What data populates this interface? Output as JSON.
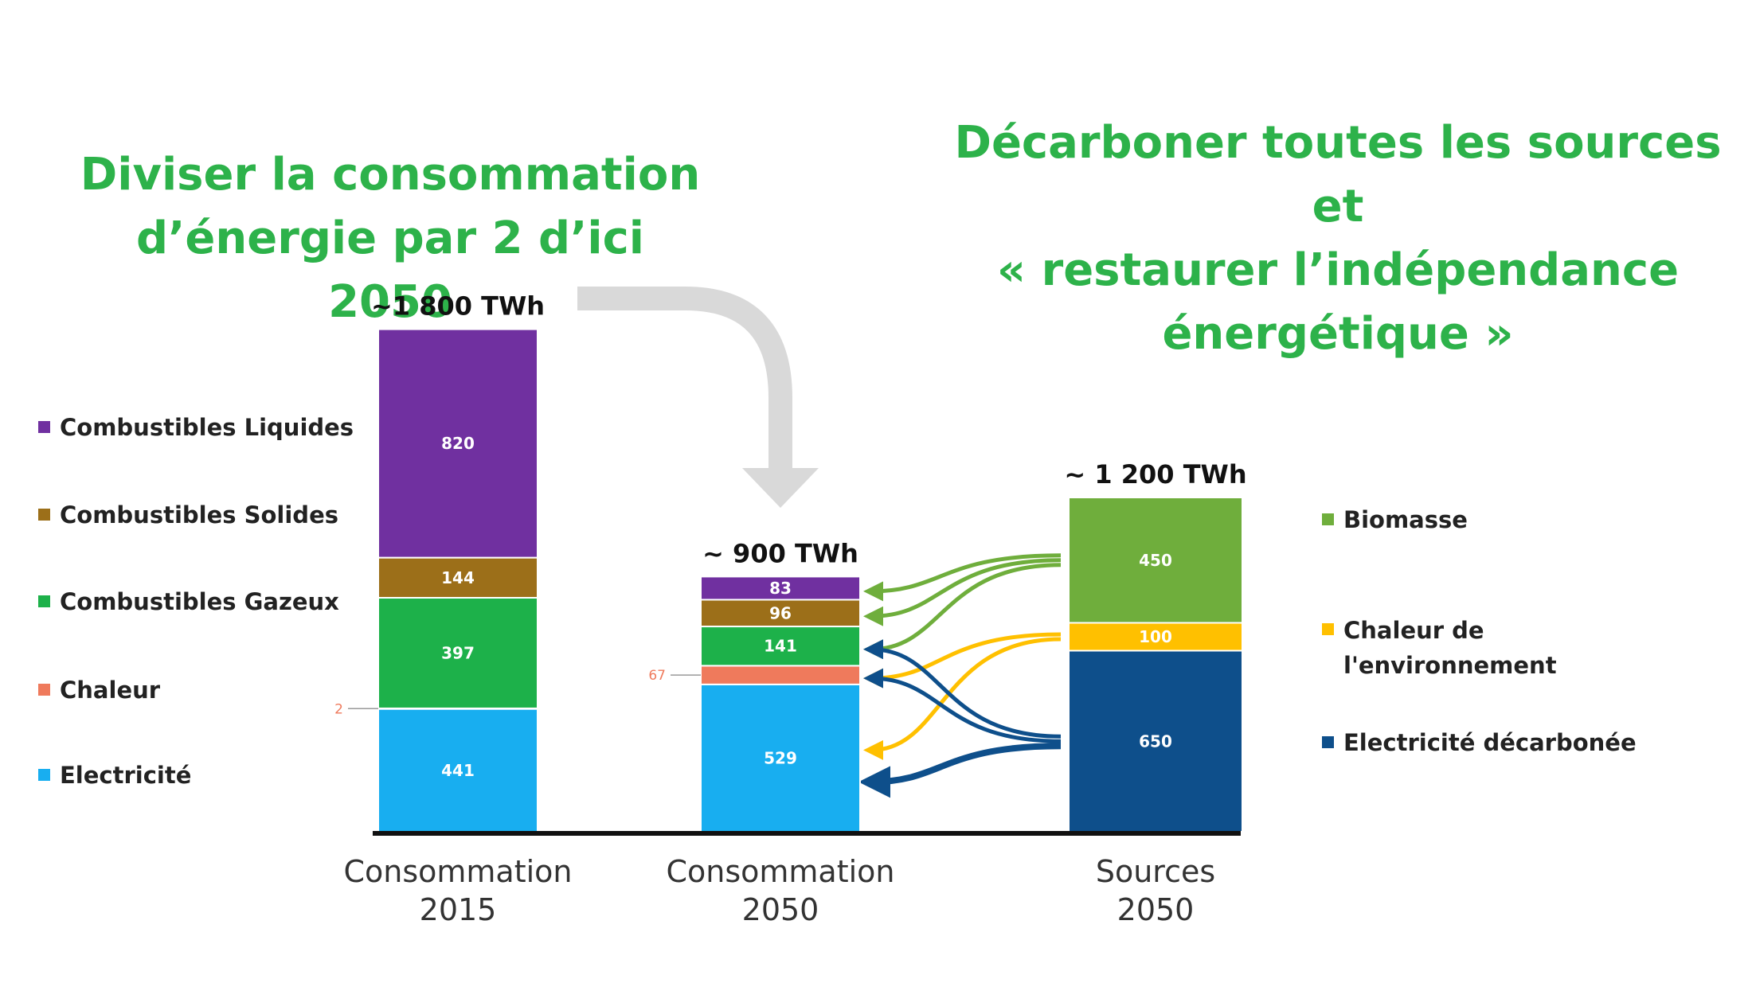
{
  "headline_left": [
    "Diviser la consommation",
    "d’énergie par 2 d’ici 2050"
  ],
  "headline_right": [
    "Décarboner toutes les sources et",
    "« restaurer l’indépendance",
    "énergétique »"
  ],
  "legend_left": [
    {
      "label": "Combustibles Liquides",
      "color": "#7030a0"
    },
    {
      "label": "Combustibles Solides",
      "color": "#9c6f19"
    },
    {
      "label": "Combustibles Gazeux",
      "color": "#1db14a"
    },
    {
      "label": "Chaleur",
      "color": "#ef7a5c"
    },
    {
      "label": "Electricité",
      "color": "#18aef0"
    }
  ],
  "legend_right": [
    {
      "label": [
        "Biomasse"
      ],
      "color": "#6fae3c"
    },
    {
      "label": [
        "Chaleur de",
        "l'environnement"
      ],
      "color": "#ffc000"
    },
    {
      "label": [
        "Electricité décarbonée"
      ],
      "color": "#0e4f8b"
    }
  ],
  "chart_data": {
    "type": "bar",
    "stacked": true,
    "unit": "TWh",
    "categories": [
      "Consommation 2015",
      "Consommation 2050",
      "Sources 2050"
    ],
    "category_labels": [
      [
        "Consommation",
        "2015"
      ],
      [
        "Consommation",
        "2050"
      ],
      [
        "Sources",
        "2050"
      ]
    ],
    "totals": [
      "~1 800 TWh",
      "~ 900 TWh",
      "~ 1 200 TWh"
    ],
    "series": [
      {
        "name": "Electricité",
        "color": "#18aef0",
        "values": [
          441,
          529,
          null
        ]
      },
      {
        "name": "Chaleur",
        "color": "#ef7a5c",
        "values": [
          2,
          67,
          null
        ]
      },
      {
        "name": "Combustibles Gazeux",
        "color": "#1db14a",
        "values": [
          397,
          141,
          null
        ]
      },
      {
        "name": "Combustibles Solides",
        "color": "#9c6f19",
        "values": [
          144,
          96,
          null
        ]
      },
      {
        "name": "Combustibles Liquides",
        "color": "#7030a0",
        "values": [
          820,
          83,
          null
        ]
      },
      {
        "name": "Electricité décarbonée",
        "color": "#0e4f8b",
        "values": [
          null,
          null,
          650
        ]
      },
      {
        "name": "Chaleur de l'environnement",
        "color": "#ffc000",
        "values": [
          null,
          null,
          100
        ]
      },
      {
        "name": "Biomasse",
        "color": "#6fae3c",
        "values": [
          null,
          null,
          450
        ]
      }
    ],
    "outside_labels": [
      {
        "category": "Consommation 2015",
        "series": "Chaleur",
        "text": "2"
      },
      {
        "category": "Consommation 2050",
        "series": "Chaleur",
        "text": "67"
      }
    ],
    "flows": [
      {
        "from": "Biomasse",
        "to": [
          "Combustibles Liquides",
          "Combustibles Solides",
          "Combustibles Gazeux"
        ],
        "color": "#6fae3c"
      },
      {
        "from": "Chaleur de l'environnement",
        "to": [
          "Chaleur",
          "Electricité"
        ],
        "color": "#ffc000"
      },
      {
        "from": "Electricité décarbonée",
        "to": [
          "Combustibles Gazeux",
          "Chaleur",
          "Electricité"
        ],
        "color": "#0e4f8b"
      }
    ]
  }
}
